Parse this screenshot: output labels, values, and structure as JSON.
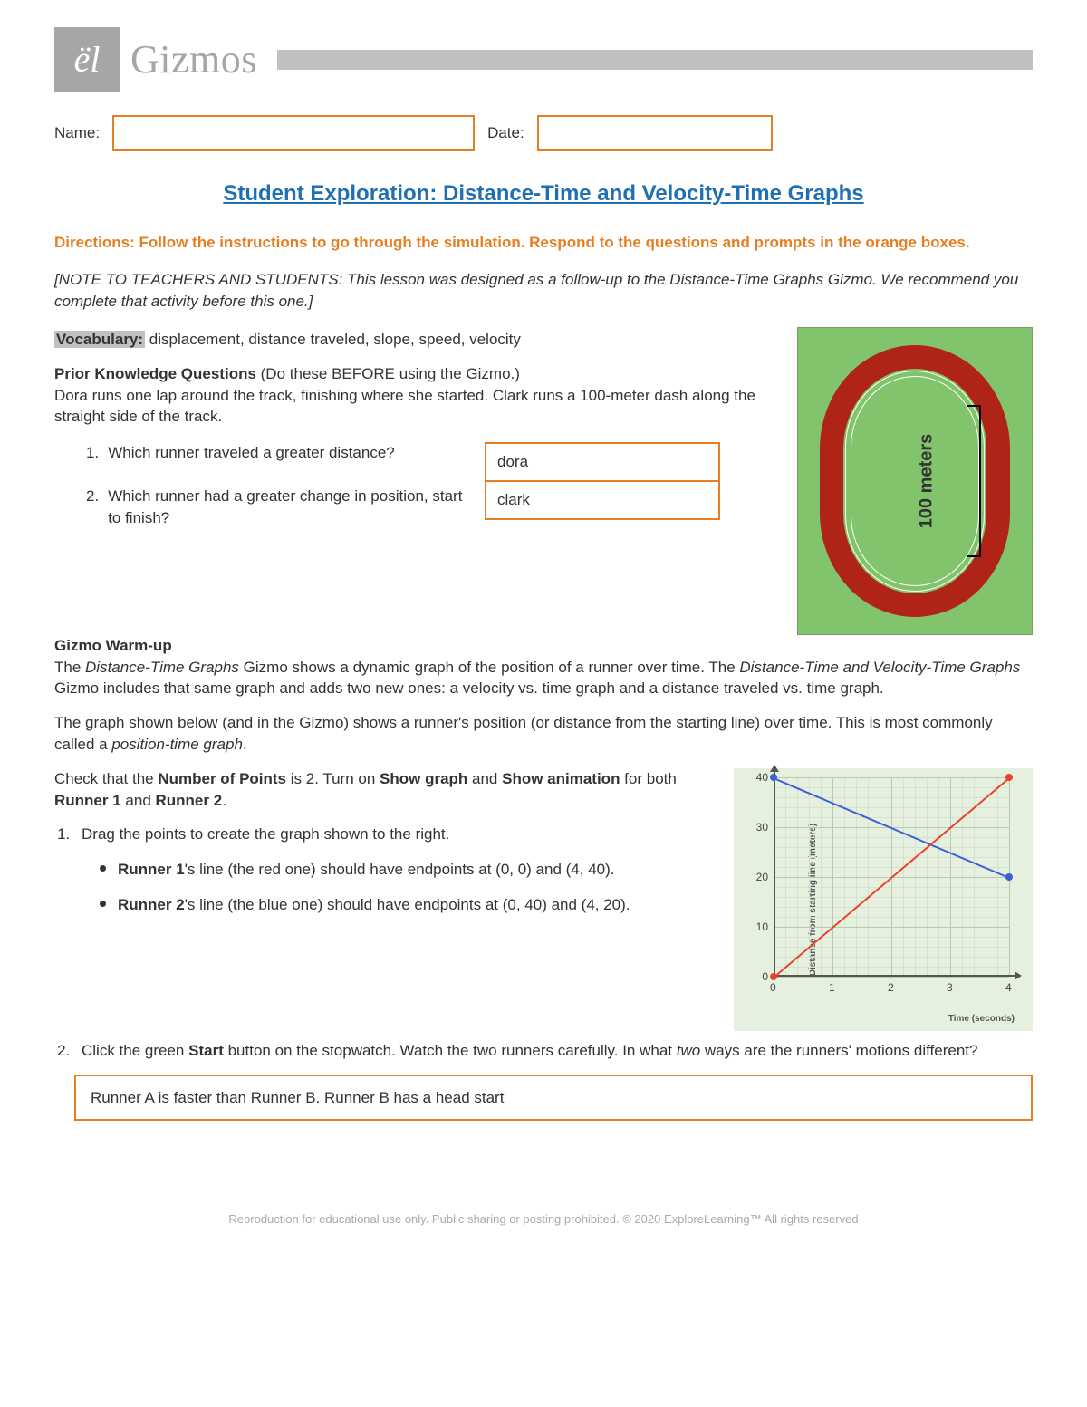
{
  "brand": "Gizmos",
  "logo_text": "ël",
  "labels": {
    "name": "Name:",
    "date": "Date:"
  },
  "title": "Student Exploration: Distance-Time and Velocity-Time Graphs",
  "directions": "Directions: Follow the instructions to go through the simulation. Respond to the questions and prompts in the orange boxes.",
  "note": "[NOTE TO TEACHERS AND STUDENTS: This lesson was designed as a follow-up to the Distance-Time Graphs Gizmo. We recommend you complete that activity before this one.]",
  "vocab_label": "Vocabulary:",
  "vocab_text": " displacement, distance traveled, slope, speed, velocity",
  "pkq_heading": "Prior Knowledge Questions",
  "pkq_sub": " (Do these BEFORE using the Gizmo.)",
  "pkq_intro": "Dora runs one lap around the track, finishing where she started. Clark runs a 100-meter dash along the straight side of the track.",
  "q1": {
    "num": "1.",
    "text": "Which runner traveled a greater distance?",
    "answer": "dora"
  },
  "q2": {
    "num": "2.",
    "text": "Which runner had a greater change in position, start to finish?",
    "answer": "clark"
  },
  "track": {
    "measure_label": "100 meters"
  },
  "warmup": {
    "heading": "Gizmo Warm-up",
    "p1a": "The ",
    "p1b": "Distance-Time Graphs",
    "p1c": " Gizmo shows a dynamic graph of the position of a runner over time. The ",
    "p1d": "Distance-Time and Velocity-Time Graphs",
    "p1e": " Gizmo includes that same graph and adds two new ones: a velocity vs. time graph and a distance traveled vs. time graph.",
    "p2a": "The graph shown below (and in the Gizmo) shows a runner's position (or distance from the starting line) over time. This is most commonly called a ",
    "p2b": "position-time graph",
    "p2c": ".",
    "p3a": "Check that the ",
    "p3b": "Number of Points",
    "p3c": " is 2. Turn on ",
    "p3d": "Show graph",
    "p3e": " and ",
    "p3f": "Show animation",
    "p3g": " for both ",
    "p3h": "Runner 1",
    "p3i": " and ",
    "p3j": "Runner 2",
    "p3k": "."
  },
  "list": {
    "item1": "Drag the points to create the graph shown to the right.",
    "b1a": "Runner 1",
    "b1b": "'s line (the red one) should have endpoints at (0, 0) and (4, 40).",
    "b2a": "Runner 2",
    "b2b": "'s line (the blue one) should have endpoints at (0, 40) and (4, 20).",
    "item2a": "Click the green ",
    "item2b": "Start",
    "item2c": " button on the stopwatch. Watch the two runners carefully. In what ",
    "item2d": "two",
    "item2e": " ways are the runners' motions different?"
  },
  "wide_answer": "Runner A is faster than Runner B. Runner B has a head start",
  "chart": {
    "ylabel": "Distance from starting line (meters)",
    "xlabel": "Time (seconds)",
    "ylim": [
      0,
      40
    ],
    "xlim": [
      0,
      4
    ],
    "yticks": [
      0,
      10,
      20,
      30,
      40
    ],
    "xticks": [
      0,
      1,
      2,
      3,
      4
    ],
    "runner1": {
      "color": "#e8432e",
      "p0": [
        0,
        0
      ],
      "p1": [
        4,
        40
      ]
    },
    "runner2": {
      "color": "#3a5fd9",
      "p0": [
        0,
        40
      ],
      "p1": [
        4,
        20
      ]
    },
    "grid_color": "#b8c9b0",
    "subgrid_color": "#d6e2cf",
    "bg": "#e6f0de"
  },
  "colors": {
    "orange": "#e67e22",
    "title_blue": "#1f6fb2",
    "gray": "#a6a6a6"
  },
  "footer": "Reproduction for educational use only. Public sharing or posting prohibited. © 2020 ExploreLearning™ All rights reserved"
}
